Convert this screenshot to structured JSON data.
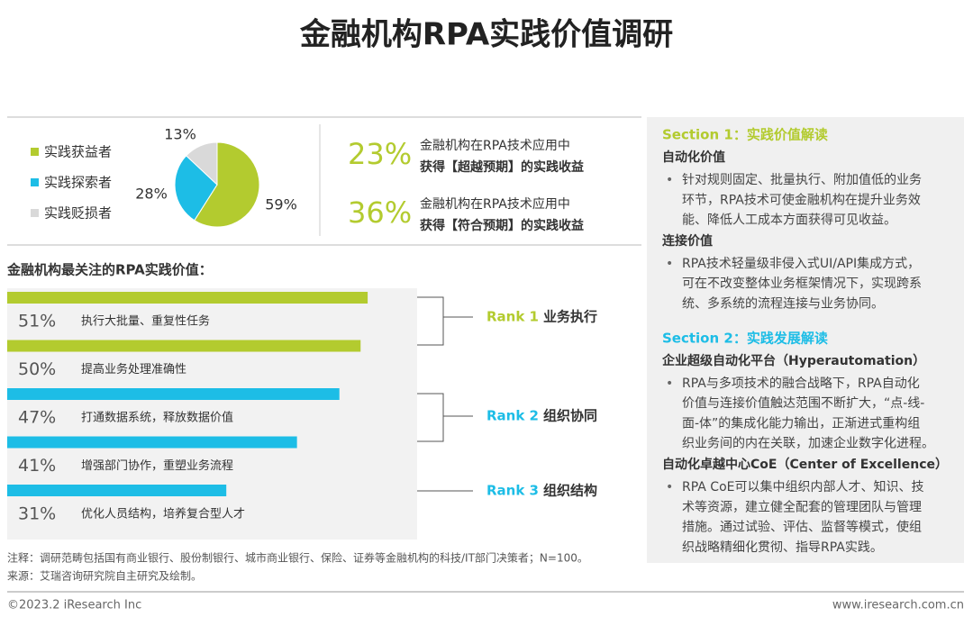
{
  "title": "金融机构RPA实践价值调研",
  "chart_data": [
    {
      "type": "pie",
      "categories": [
        "实践获益者",
        "实践探索者",
        "实践贬损者"
      ],
      "values": [
        59,
        28,
        13
      ],
      "value_labels": [
        "59%",
        "28%",
        "13%"
      ],
      "colors": [
        "#b3cb2f",
        "#1dbde6",
        "#d9d9d9"
      ]
    },
    {
      "type": "bar",
      "title": "金融机构最关注的RPA实践价值：",
      "categories": [
        "执行大批量、重复性任务",
        "提高业务处理准确性",
        "打通数据系统，释放数据价值",
        "增强部门协作，重塑业务流程",
        "优化人员结构，培养复合型人才"
      ],
      "values": [
        51,
        50,
        47,
        41,
        31
      ],
      "value_labels": [
        "51%",
        "50%",
        "47%",
        "41%",
        "31%"
      ],
      "colors": [
        "#b3cb2f",
        "#b3cb2f",
        "#1dbde6",
        "#1dbde6",
        "#1dbde6"
      ],
      "xlim": [
        0,
        58
      ]
    }
  ],
  "stats": [
    {
      "value": "23%",
      "line1": "金融机构在RPA技术应用中",
      "line2": "获得【超越预期】的实践收益"
    },
    {
      "value": "36%",
      "line1": "金融机构在RPA技术应用中",
      "line2": "获得【符合预期】的实践收益"
    }
  ],
  "ranks": [
    {
      "label": "Rank 1",
      "name": "业务执行",
      "color": "#b3cb2f"
    },
    {
      "label": "Rank 2",
      "name": "组织协同",
      "color": "#1dbde6"
    },
    {
      "label": "Rank 3",
      "name": "组织结构",
      "color": "#1dbde6"
    }
  ],
  "sections": [
    {
      "title": "Section 1：实践价值解读",
      "color": "#b3cb2f",
      "items": [
        {
          "heading": "自动化价值",
          "lines": [
            "针对规则固定、批量执行、附加值低的业务",
            "环节，RPA技术可使金融机构在提升业务效",
            "能、降低人工成本方面获得可见收益。"
          ]
        },
        {
          "heading": "连接价值",
          "lines": [
            "RPA技术轻量级非侵入式UI/API集成方式，",
            "可在不改变整体业务框架情况下，实现跨系",
            "统、多系统的流程连接与业务协同。"
          ]
        }
      ]
    },
    {
      "title": "Section 2：实践发展解读",
      "color": "#1dbde6",
      "items": [
        {
          "heading": "企业超级自动化平台（Hyperautomation）",
          "lines": [
            "RPA与多项技术的融合战略下，RPA自动化",
            "价值与连接价值触达范围不断扩大，“点-线-",
            "面-体”的集成化能力输出，正渐进式重构组",
            "织业务间的内在关联，加速企业数字化进程。"
          ]
        },
        {
          "heading": "自动化卓越中心CoE（Center of Excellence）",
          "lines": [
            "RPA CoE可以集中组织内部人才、知识、技",
            "术等资源，建立健全配套的管理团队与管理",
            "措施。通过试验、评估、监督等模式，使组",
            "织战略精细化贯彻、指导RPA实践。"
          ]
        }
      ]
    }
  ],
  "note": "注释：调研范畴包括国有商业银行、股份制银行、城市商业银行、保险、证券等金融机构的科技/IT部门决策者；N=100。",
  "source": "来源：艾瑞咨询研究院自主研究及绘制。",
  "footer_left": "©2023.2 iResearch Inc",
  "footer_right": "www.iresearch.com.cn"
}
